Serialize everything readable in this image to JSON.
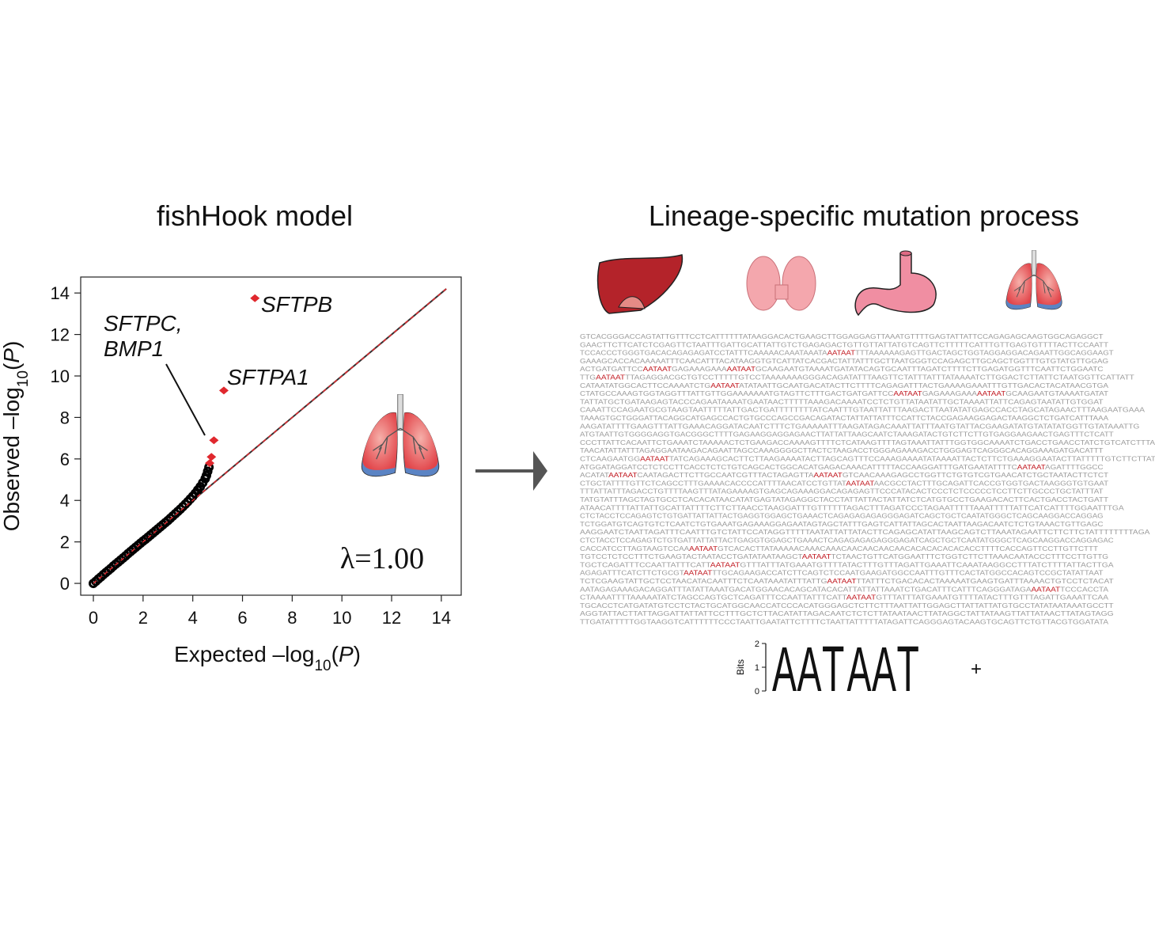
{
  "chart_data": {
    "type": "scatter",
    "title": "fishHook model",
    "x_label": [
      "Expected –log",
      "10",
      "(",
      "P",
      ")"
    ],
    "y_label": [
      "Observed –log",
      "10",
      "(",
      "P",
      ")"
    ],
    "xlim": [
      -0.51,
      14.8
    ],
    "ylim": [
      -0.57,
      14.77
    ],
    "xticks": [
      0,
      2,
      4,
      6,
      8,
      10,
      12,
      14
    ],
    "yticks": [
      0,
      2,
      4,
      6,
      8,
      10,
      12,
      14
    ],
    "series": [
      {
        "color": "#000000",
        "x": [
          0,
          0.1,
          0.2,
          0.3,
          0.4,
          0.5,
          0.6,
          0.7,
          0.8,
          0.9,
          1.0,
          1.1,
          1.2,
          1.3,
          1.4,
          1.5,
          1.6,
          1.7,
          1.8,
          1.9,
          2.0,
          2.1,
          2.2,
          2.3,
          2.4,
          2.5,
          2.6,
          2.7,
          2.8,
          2.9,
          3.0,
          3.1,
          3.2,
          3.3,
          3.4,
          3.5,
          3.6,
          3.7,
          3.8,
          3.9,
          4.0,
          4.1,
          4.2,
          4.3,
          4.4,
          4.5,
          4.55,
          4.6,
          4.65
        ],
        "y": [
          0,
          0.1,
          0.21,
          0.31,
          0.42,
          0.52,
          0.62,
          0.72,
          0.83,
          0.93,
          1.03,
          1.13,
          1.23,
          1.33,
          1.44,
          1.54,
          1.64,
          1.74,
          1.84,
          1.94,
          2.04,
          2.13,
          2.23,
          2.33,
          2.43,
          2.53,
          2.63,
          2.73,
          2.83,
          2.93,
          3.03,
          3.14,
          3.25,
          3.36,
          3.47,
          3.58,
          3.7,
          3.82,
          3.94,
          4.07,
          4.2,
          4.34,
          4.5,
          4.66,
          4.85,
          5.05,
          5.2,
          5.4,
          5.6
        ]
      },
      {
        "color": "#e0282e",
        "x": [
          6.5,
          5.25,
          4.85,
          4.75,
          4.68
        ],
        "y": [
          13.75,
          9.3,
          6.9,
          6.1,
          5.8
        ]
      }
    ],
    "reference_line": {
      "x": [
        0,
        14.2
      ],
      "y": [
        0,
        14.2
      ]
    },
    "annotations": [
      "SFTPB",
      "SFTPA1",
      "SFTPC,",
      "BMP1"
    ],
    "lambda": "λ=1.00"
  },
  "right_panel": {
    "title": "Lineage-specific mutation process",
    "sequences": [
      "GTCACGGGACCAGTATTGTTTCCTCATTTTTTATAAGGACACTGAAGCTTGGAGGAGTTAAATGTTTTGAGTATTATTCCAGAGAGCAAGTGGCAGAGGCT",
      "GAACTTCTTCATCTCGAGTTCTAATTTGATTGCATTATTGTCTGAGAGACTGTTGTTATTATGTCAGTTCTTTTTCATTTGTTGAGTGTTTTACTTCCAATT",
      "TCCACCCTGGGTGACACAGAGAGATCCTATTTCAAAAACAAATAAATAAATAATTTTAAAAAAGAGTTGACTAGCTGGTAGGAGGACAGAATTGGCAGGAAGT",
      "GAAAGCACCACAAAAATTTCAACATTTACATAAGGTGTCATTATCACGACTATTATTTGCTTAATGGGTCCAGAGCTTGCAGCTGGTTTGTGTATGTTGGAG",
      "ACTGATGATTCCAATAATGAGAAAGAAAAATAATGCAAGAATGTAAAATGATATACAGTGCAATTTAGATCTTTTCTTGAGATGGTTTCAATTCTGGAATC",
      "TTGAATAATTTAGAGGACGCTGTCCTTTTTGTCCTAAAAAAAGGGACAGATATTTAAGTTCTATTTATTTATAAAATCTTGGACTCTTATTCTAATGGTTCATTATT",
      "CATAATATGGCACTTCCAAAATCTGAATAATATATAATTGCAATGACATACTTCTTTTCAGAGATTTACTGAAAAGAAATTTGTTGACACTACATAACGTGA",
      "CTATGCCAAAGTGGTAGGTTTATTGTTGGAAAAAAATGTAGTTCTTTGACTGATGATTCCAATAATGAGAAAGAAAAATAATGCAAGAATGTAAAATGATAT",
      "TATTATGCTGATAAGAGTACCCAGAATAAAATGAATAACTTTTTAAAGACAAAATCCTCTGTTATAATATTGCTAAAATTATTCAGAGTAATATTGTGGAT",
      "CAAATTCCAGAATGCGTAAGTAATTTTTATTGACTGATTTTTTTTATCAATTTGTAATTATTTAAGACTTAATATATGAGCCACCTAGCATAGAACTTTAAGAATGAAA",
      "TAAAGTGCTGGGATTACAGGCATGAGCCACTGTGCCCAGCCGACAGATACTATTATTATTTCCATTCTACCGAGAAGGAGACTAAGGCTCTGATCATTTAAA",
      "AAGATATTTTGAAGTTTATTGAAACAGGATACAATCTTTCTGAAAAATTTAAGATAGACAAATTATTTAATGTATTACGAAGATATGTATATATGGTTGTATAAATTG",
      "ATGTAATTGTGGGGAGGTGACGGGCTTTTGAGAAGGAGGAGAACTTATTATTAAGCAATCTAAAGATACTGTCTTCTTGTGAGGAAGAACTGAGTTTCTCATT",
      "CCCTTATTCACAATTCTGAAATCTAAAAACTCTGAAGACCAAAAGTTTTCTCATAAGTTTTAGTAAATTATTTGGTGGCAAAATCTGACCTGAACCTATCTGTCATCTTTA",
      "TAACATATTATTTAGAGGAATAAGACAGAATTAGCCAAAGGGGCTTACTCTAAGACCTGGGAGAAAGACCTGGGAGTCAGGGCACAGGAAAGATGACATTT",
      "CTCAAGAATGGAATAATTATCAGAAAGCACTTCTTAAGAAAATACTTAGCAGTTTCCAAAGAAAATATAAAATTACTCTTCTGAAAGGAATACTTATTTTTGTCTTCTTATTT",
      "ATGGATAGGATCCTCTCCTTCACCTCTCTGTCAGCACTGGCACATGAGACAAACATTTTTACCAAGGATTTGATGAATATTTTCAATAATAGATTTTGGCC",
      "ACATATAATAATCAATAGACTTCTTGCCAATCGTTTACTAGAGTTAAATAATGTCAACAAAGAGCCTGGTTCTGTGTCGTGAACATCTGCTAATACTTCTCT",
      "CTGCTATTTTGTTCTCAGCCTTTGAAAACACCCCATTTTAACATCCTGTTATAATAATAACGCCTACTTTGCAGATTCACCGTGGTGACTAAGGGTGTGAAT",
      "TTTATTATTTAGACCTGTTTTAAGTTTATAGAAAAGTGAGCAGAAAGGACAGAGAGTTCCCATACACTCCCTCTCCCCCTCCTTCTTGCCCTGCTATTTAT",
      "TATGTATTTAGCTAGTGCCTCACACATAACATATGAGTATAGAGGCTACCTATTATTACTATTATCTCATGTGCCTGAAGACACTTCACTGACCTACTGATT",
      "ATAACATTTTATTATTGCATTATTTTCTTCTTAACCTAAGGATTTGTTTTTTAGACTTTAGATCCCTAGAATTTTTAAATTTTTATTCATCATTTTGGAATTTGA",
      "CTCTACCTCCAGAGTCTGTGATTATTATTACTGAGGTGGAGCTGAAACTCAGAGAGAGAGGGAGATCAGCTGCTCAATATGGGCTCAGCAAGGACCAGGAG",
      "TCTGGATGTCAGTGTCTCAATCTGTGAAATGAGAAAGGAGAATAGTAGCTATTTGAGTCATTATTAGCACTAATTAAGACAATCTCTGTAAACTGTTGAGC",
      "AAGGAATCTAATTAGATTTCAATTTGTCTATTCCATAGGTTTTTAATATTATTATACTTCAGAGCATATTAAGCAGTCTTAAATAGAATTCTTCTTCTATTTTTTTTAGA",
      "CTCTACCTCCAGAGTCTGTGATTATTATTACTGAGGTGGAGCTGAAACTCAGAGAGAGAGGGAGATCAGCTGCTCAATATGGGCTCAGCAAGGACCAGGAGAC",
      "CACCATCCTTAGTAAGTCCAAAATAATGTCACACTTATAAAAACAAACAAACAACAACAACAACACACACACACACCTTTTCACCAGTTCCTTGTTCTTT",
      "TGTCCTCTCCTTTCTGAAGTACTAATACCTGATATAATAAGCTAATAATTCTAACTGTTCATGGAATTTCTGGTCTTCTTAAACAATACCCTTTCCTTGTTG",
      "TGCTCAGATTTCCAATTATTTCATTAATAATGTTTATTTATGAAATGTTTTATACTTTGTTTAGATTGAAATTCAAATAAGGCCTTTATCTTTTATTACTTGA",
      "AGAGATTTCATCTTCTGCGTAATAATTTGCAGAAGACCATCTTCAGTCTCCAATGAAGATGGCCAATTTGTTTCACTATGGCCACAGTCCGCTATATTAAT",
      "TCTCGAAGTATTGCTCCTAACATACAATTTCTCAATAAATATTTATTGAATAATTTATTTCTGACACACTAAAAATGAAGTGATTTAAAACTGTCCTCTACAT",
      "AATAGAGAAAGACAGGATTTATATTAAATGACATGGAACACAGCATACACATTATTATTAAATCTGACATTTCATTTCAGGGATAGAAATAATTCCCACCTA",
      "CTAAAATTTTAAAAATATCTAGCCAGTGCTCAGATTTCCAATTATTTCATTAATAATGTTTATTTATGAAATGTTTTATACTTTGTTTAGATTGAAATTCAA",
      "TGCACCTCATGATATGTCCTCTACTGCATGGCAACCATCCCACATGGGAGCTCTTCTTTAATTATTGGAGCTTATTATTATGTGCCTATATAATAAATGCCTT",
      "AGGTATTACTTATTAGGATTATTATTCCTTTGCTCTTACATATTAGACAATCTCTCTTATAATAACTTATAGGCTATTATAAGTTATTATAACTTATAGTAGG",
      "TTGATATTTTTGGTAAGGTCATTTTTTCCCTAATTGAATATTCTTTTCTAATTATTTTTATAGATTCAGGGAGTACAAGTGCAGTTCTGTTACGTGGATATA"
    ],
    "logo": {
      "y_label": "Bits",
      "ylim": [
        0,
        2
      ],
      "yticks": [
        0,
        1,
        2
      ],
      "letters": [
        "A",
        "A",
        "T",
        "A",
        "A",
        "T"
      ],
      "heights": [
        1.92,
        1.92,
        1.95,
        1.92,
        1.92,
        1.95
      ],
      "colors": {
        "A": "#66b548",
        "T": "#e2282e"
      }
    },
    "plus": "+"
  }
}
